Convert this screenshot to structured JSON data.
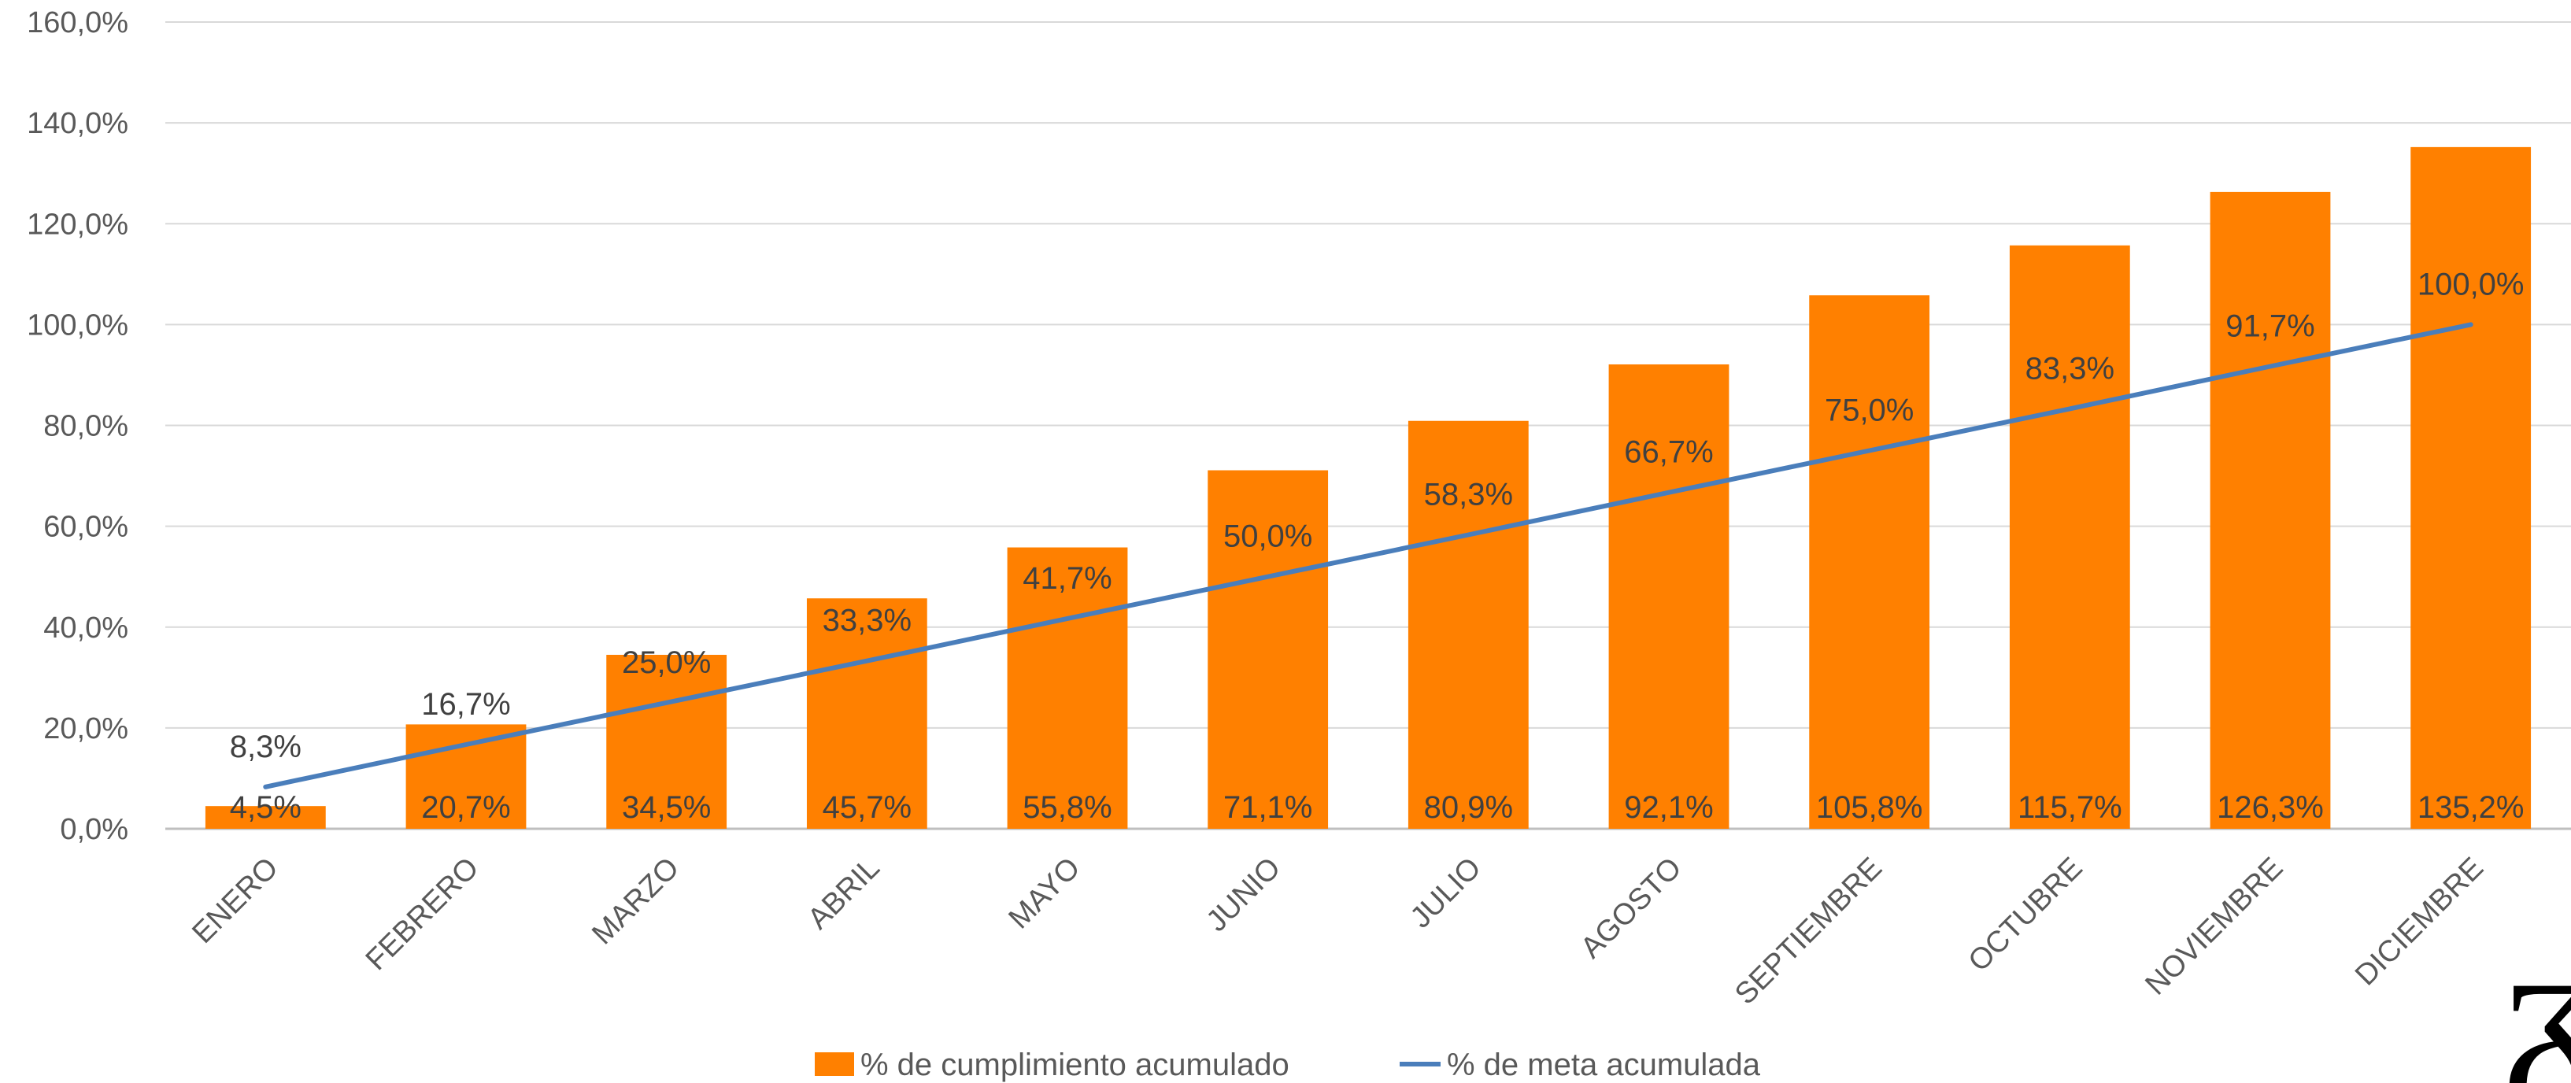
{
  "chart_data": {
    "type": "bar",
    "categories": [
      "ENERO",
      "FEBRERO",
      "MARZO",
      "ABRIL",
      "MAYO",
      "JUNIO",
      "JULIO",
      "AGOSTO",
      "SEPTIEMBRE",
      "OCTUBRE",
      "NOVIEMBRE",
      "DICIEMBRE"
    ],
    "series": [
      {
        "name": "% de cumplimiento acumulado",
        "type": "bar",
        "color": "#FF8000",
        "values": [
          4.5,
          20.7,
          34.5,
          45.7,
          55.8,
          71.1,
          80.9,
          92.1,
          105.8,
          115.7,
          126.3,
          135.2
        ],
        "labels": [
          "4,5%",
          "20,7%",
          "34,5%",
          "45,7%",
          "55,8%",
          "71,1%",
          "80,9%",
          "92,1%",
          "105,8%",
          "115,7%",
          "126,3%",
          "135,2%"
        ]
      },
      {
        "name": "% de meta acumulada",
        "type": "line",
        "color": "#4A7EBB",
        "values": [
          8.3,
          16.7,
          25.0,
          33.3,
          41.7,
          50.0,
          58.3,
          66.7,
          75.0,
          83.3,
          91.7,
          100.0
        ],
        "labels": [
          "8,3%",
          "16,7%",
          "25,0%",
          "33,3%",
          "41,7%",
          "50,0%",
          "58,3%",
          "66,7%",
          "75,0%",
          "83,3%",
          "91,7%",
          "100,0%"
        ]
      }
    ],
    "title": "",
    "xlabel": "",
    "ylabel": "",
    "ylim": [
      0,
      160
    ],
    "yticks": [
      0,
      20,
      40,
      60,
      80,
      100,
      120,
      140,
      160
    ],
    "ytick_labels": [
      "0,0%",
      "20,0%",
      "40,0%",
      "60,0%",
      "80,0%",
      "100,0%",
      "120,0%",
      "140,0%",
      "160,0%"
    ],
    "grid": true,
    "legend_position": "bottom"
  },
  "decor": {
    "corner_glyph": "ᵹ"
  }
}
